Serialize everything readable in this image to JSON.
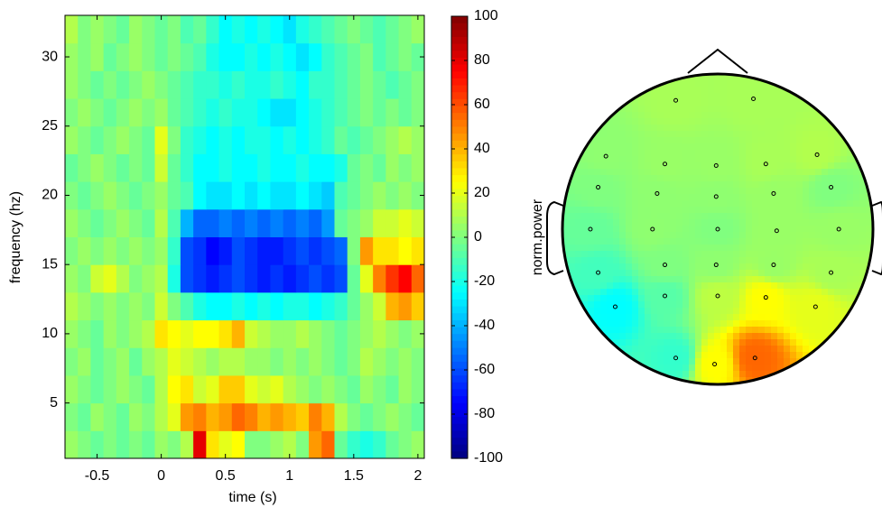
{
  "chart_data": [
    {
      "type": "heatmap",
      "xlabel": "time (s)",
      "ylabel": "frequency (hz)",
      "x": [
        -0.7,
        -0.6,
        -0.5,
        -0.4,
        -0.3,
        -0.2,
        -0.1,
        0.0,
        0.1,
        0.2,
        0.3,
        0.4,
        0.5,
        0.6,
        0.7,
        0.8,
        0.9,
        1.0,
        1.1,
        1.2,
        1.3,
        1.4,
        1.5,
        1.6,
        1.7,
        1.8,
        1.9,
        2.0
      ],
      "y": [
        2,
        4,
        6,
        8,
        10,
        12,
        14,
        16,
        18,
        20,
        22,
        24,
        26,
        28,
        30,
        32
      ],
      "z": [
        [
          5,
          0,
          -5,
          0,
          -5,
          0,
          -5,
          5,
          0,
          10,
          80,
          30,
          20,
          25,
          0,
          0,
          5,
          10,
          0,
          45,
          55,
          -5,
          -15,
          -20,
          -15,
          -5,
          0,
          5
        ],
        [
          0,
          -5,
          5,
          0,
          -5,
          5,
          0,
          10,
          20,
          45,
          50,
          40,
          45,
          55,
          50,
          40,
          45,
          40,
          35,
          50,
          40,
          10,
          0,
          -5,
          0,
          5,
          0,
          -5
        ],
        [
          5,
          0,
          -5,
          0,
          5,
          0,
          -5,
          10,
          25,
          30,
          15,
          20,
          35,
          35,
          20,
          15,
          20,
          10,
          5,
          0,
          5,
          0,
          -5,
          5,
          0,
          -5,
          5,
          0
        ],
        [
          0,
          5,
          -5,
          0,
          5,
          -5,
          5,
          10,
          20,
          15,
          10,
          5,
          10,
          10,
          5,
          5,
          0,
          5,
          0,
          5,
          0,
          -5,
          0,
          10,
          5,
          0,
          5,
          0
        ],
        [
          5,
          0,
          -5,
          5,
          0,
          5,
          10,
          30,
          25,
          20,
          25,
          25,
          30,
          40,
          15,
          10,
          5,
          5,
          10,
          5,
          0,
          -5,
          0,
          5,
          10,
          5,
          0,
          5
        ],
        [
          10,
          5,
          0,
          5,
          0,
          5,
          0,
          15,
          0,
          -10,
          -20,
          -25,
          -25,
          -20,
          -25,
          -20,
          -25,
          -20,
          -20,
          -25,
          -20,
          -15,
          -5,
          5,
          15,
          40,
          45,
          35
        ],
        [
          5,
          0,
          15,
          20,
          10,
          0,
          5,
          10,
          -20,
          -60,
          -65,
          -70,
          -65,
          -60,
          -65,
          -70,
          -65,
          -70,
          -65,
          -60,
          -65,
          -60,
          -5,
          20,
          50,
          65,
          75,
          55
        ],
        [
          0,
          5,
          0,
          5,
          0,
          5,
          0,
          5,
          -15,
          -60,
          -65,
          -75,
          -70,
          -60,
          -65,
          -70,
          -70,
          -65,
          -60,
          -65,
          -60,
          -55,
          0,
          45,
          30,
          30,
          25,
          30
        ],
        [
          5,
          0,
          -5,
          0,
          5,
          0,
          -5,
          10,
          -10,
          -40,
          -55,
          -55,
          -50,
          -55,
          -50,
          -55,
          -50,
          -55,
          -50,
          -55,
          -45,
          -5,
          0,
          5,
          15,
          15,
          20,
          15
        ],
        [
          0,
          -5,
          0,
          5,
          0,
          -5,
          0,
          5,
          -5,
          -10,
          -25,
          -30,
          -30,
          -25,
          -30,
          -25,
          -30,
          -30,
          -25,
          -30,
          -35,
          -10,
          -5,
          0,
          5,
          0,
          5,
          0
        ],
        [
          -5,
          0,
          5,
          0,
          -5,
          0,
          -5,
          15,
          -5,
          -15,
          -25,
          -25,
          -20,
          -25,
          -25,
          -20,
          -25,
          -25,
          -20,
          -25,
          -25,
          -20,
          -5,
          0,
          -5,
          5,
          0,
          5
        ],
        [
          5,
          0,
          -5,
          0,
          5,
          0,
          -5,
          20,
          0,
          -15,
          -20,
          -25,
          -20,
          -25,
          -20,
          -20,
          -25,
          -20,
          -25,
          -20,
          -15,
          -5,
          -10,
          -5,
          0,
          5,
          10,
          5
        ],
        [
          0,
          5,
          0,
          -5,
          0,
          5,
          0,
          5,
          -5,
          -10,
          -15,
          -20,
          -15,
          -20,
          -20,
          -25,
          -30,
          -30,
          -25,
          -20,
          -15,
          -10,
          -5,
          0,
          -5,
          0,
          -5,
          0
        ],
        [
          5,
          0,
          -5,
          0,
          -5,
          0,
          5,
          0,
          -5,
          -10,
          -15,
          -15,
          -20,
          -15,
          -20,
          -20,
          -15,
          -20,
          -25,
          -15,
          -15,
          -10,
          -5,
          0,
          -5,
          -10,
          -5,
          0
        ],
        [
          5,
          0,
          5,
          -5,
          0,
          5,
          0,
          -5,
          0,
          -5,
          -10,
          -20,
          -25,
          -25,
          -20,
          -25,
          -20,
          -25,
          -30,
          -25,
          -15,
          -10,
          -5,
          0,
          -10,
          -5,
          0,
          -5
        ],
        [
          10,
          0,
          5,
          0,
          -5,
          5,
          0,
          -5,
          0,
          -10,
          -5,
          -15,
          -25,
          -20,
          -25,
          -20,
          -25,
          -30,
          -20,
          -15,
          -10,
          -5,
          0,
          -5,
          -10,
          -5,
          0,
          5
        ]
      ],
      "xlim": [
        -0.75,
        2.05
      ],
      "ylim": [
        1,
        33
      ],
      "xticks": [
        -0.5,
        0,
        0.5,
        1,
        1.5,
        2
      ],
      "yticks": [
        5,
        10,
        15,
        20,
        25,
        30
      ],
      "colormap": "jet",
      "clim": [
        -100,
        100
      ],
      "colorbar": {
        "ticks": [
          -100,
          -80,
          -60,
          -40,
          -20,
          0,
          20,
          40,
          60,
          80,
          100
        ],
        "label": "norm.power"
      }
    },
    {
      "type": "topoplot",
      "x": [
        -0.27,
        0.23,
        -0.72,
        -0.34,
        -0.01,
        0.31,
        0.64,
        -0.77,
        -0.39,
        -0.01,
        0.36,
        0.73,
        -0.82,
        -0.42,
        0,
        0.38,
        0.78,
        -0.77,
        -0.34,
        -0.01,
        0.36,
        0.73,
        -0.66,
        -0.34,
        0,
        0.31,
        0.63,
        -0.27,
        -0.02,
        0.24
      ],
      "y": [
        0.83,
        0.84,
        0.47,
        0.42,
        0.41,
        0.42,
        0.48,
        0.27,
        0.23,
        0.21,
        0.23,
        0.27,
        0,
        0,
        0,
        -0.01,
        0,
        -0.28,
        -0.23,
        -0.23,
        -0.23,
        -0.28,
        -0.5,
        -0.43,
        -0.43,
        -0.44,
        -0.5,
        -0.83,
        -0.87,
        -0.83
      ],
      "values": [
        8,
        8,
        3,
        5,
        5,
        8,
        10,
        0,
        3,
        3,
        5,
        0,
        -5,
        3,
        0,
        5,
        5,
        -12,
        0,
        3,
        5,
        8,
        -25,
        -8,
        12,
        25,
        20,
        -15,
        25,
        55
      ],
      "colormap": "jet",
      "clim": [
        -100,
        100
      ]
    }
  ]
}
